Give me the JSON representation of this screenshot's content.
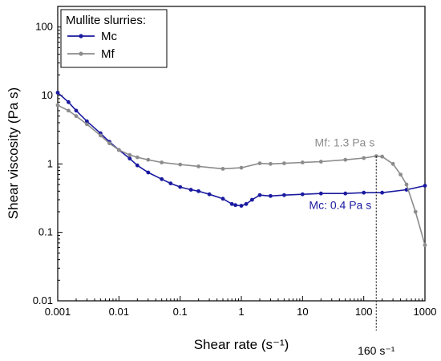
{
  "chart_data": {
    "type": "line",
    "xlabel": "Shear rate (s⁻¹)",
    "ylabel": "Shear viscosity (Pa s)",
    "xscale": "log",
    "yscale": "log",
    "xlim": [
      0.001,
      1000
    ],
    "ylim": [
      0.01,
      200
    ],
    "x_ticks": [
      {
        "value": 0.001,
        "label": "0.001"
      },
      {
        "value": 0.01,
        "label": "0.01"
      },
      {
        "value": 0.1,
        "label": "0.1"
      },
      {
        "value": 1,
        "label": "1"
      },
      {
        "value": 10,
        "label": "10"
      },
      {
        "value": 100,
        "label": "100"
      },
      {
        "value": 1000,
        "label": "1000"
      }
    ],
    "y_ticks": [
      {
        "value": 0.01,
        "label": "0.01"
      },
      {
        "value": 0.1,
        "label": "0.1"
      },
      {
        "value": 1,
        "label": "1"
      },
      {
        "value": 10,
        "label": "10"
      },
      {
        "value": 100,
        "label": "100"
      }
    ],
    "grid": false,
    "legend": {
      "title": "Mullite slurries:",
      "placement": "top-left",
      "entries": [
        "Mc",
        "Mf"
      ]
    },
    "series": [
      {
        "name": "Mc",
        "color": "#1a1aa0",
        "x": [
          0.001,
          0.0015,
          0.002,
          0.003,
          0.005,
          0.007,
          0.01,
          0.015,
          0.02,
          0.03,
          0.05,
          0.07,
          0.1,
          0.15,
          0.2,
          0.3,
          0.5,
          0.7,
          0.8,
          1,
          1.2,
          1.5,
          2,
          3,
          5,
          10,
          20,
          50,
          100,
          200,
          500,
          1000
        ],
        "y": [
          11,
          8,
          6,
          4.2,
          2.8,
          2.1,
          1.6,
          1.2,
          0.95,
          0.75,
          0.6,
          0.52,
          0.46,
          0.42,
          0.4,
          0.36,
          0.31,
          0.26,
          0.25,
          0.245,
          0.26,
          0.3,
          0.35,
          0.34,
          0.35,
          0.36,
          0.37,
          0.37,
          0.38,
          0.38,
          0.42,
          0.48
        ]
      },
      {
        "name": "Mf",
        "color": "#8c8c8c",
        "x": [
          0.001,
          0.0015,
          0.002,
          0.003,
          0.005,
          0.007,
          0.01,
          0.015,
          0.02,
          0.03,
          0.05,
          0.1,
          0.2,
          0.5,
          1,
          2,
          3,
          5,
          10,
          20,
          50,
          100,
          160,
          200,
          300,
          400,
          500,
          700,
          1000
        ],
        "y": [
          7.2,
          6,
          5,
          3.8,
          2.6,
          2,
          1.6,
          1.35,
          1.25,
          1.15,
          1.05,
          0.98,
          0.92,
          0.85,
          0.88,
          1.02,
          1.0,
          1.02,
          1.05,
          1.08,
          1.15,
          1.22,
          1.3,
          1.28,
          1.0,
          0.7,
          0.5,
          0.2,
          0.065
        ]
      }
    ],
    "annotations": [
      {
        "text": "Mf: 1.3 Pa s",
        "color": "#8c8c8c",
        "x": 160,
        "y": 1.3
      },
      {
        "text": "Mc: 0.4 Pa s",
        "color": "#1a1aa0",
        "x": 160,
        "y": 0.4
      },
      {
        "text": "160 s⁻¹",
        "color": "#000000",
        "x": 160
      }
    ]
  }
}
